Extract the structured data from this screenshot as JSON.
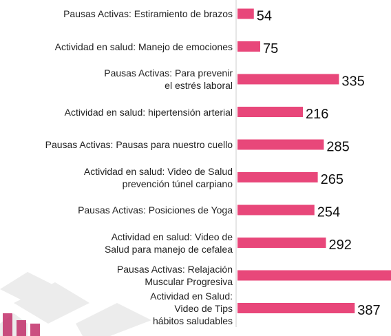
{
  "chart_data": {
    "type": "barh",
    "categories": [
      "Pausas Activas: Estiramiento de brazos",
      "Actividad en salud: Manejo de emociones",
      "Pausas Activas: Para prevenir\nel estrés laboral",
      "Actividad en salud: hipertensión arterial",
      "Pausas Activas: Pausas para nuestro cuello",
      "Actividad en salud: Video de Salud\nprevención túnel carpiano",
      "Pausas Activas: Posiciones de Yoga",
      "Actividad en salud: Video de\nSalud para manejo de cefalea",
      "Pausas Activas: Relajación\nMuscular Progresiva",
      "Actividad en Salud:\nVideo de Tips\nhábitos saludables"
    ],
    "values": [
      54,
      75,
      335,
      216,
      285,
      265,
      254,
      292,
      520,
      387
    ],
    "color": "#e8477a"
  }
}
